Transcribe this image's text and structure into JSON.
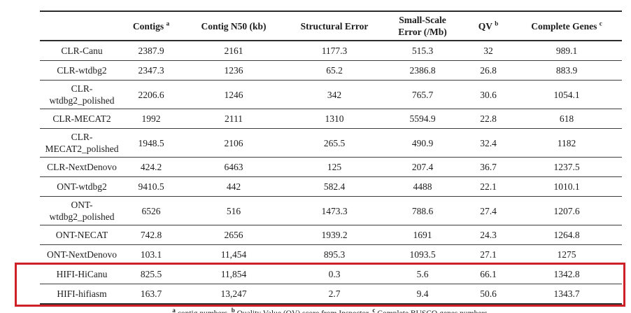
{
  "table": {
    "columns": [
      {
        "text": "",
        "sup": ""
      },
      {
        "text": "Contigs",
        "sup": "a"
      },
      {
        "text": "Contig N50 (kb)",
        "sup": ""
      },
      {
        "text": "Structural Error",
        "sup": ""
      },
      {
        "text": "Small-Scale\nError (/Mb)",
        "sup": ""
      },
      {
        "text": "QV",
        "sup": "b"
      },
      {
        "text": "Complete Genes",
        "sup": "c"
      }
    ],
    "rows": [
      {
        "label": "CLR-Canu",
        "values": [
          "2387.9",
          "2161",
          "1177.3",
          "515.3",
          "32",
          "989.1"
        ],
        "highlight": false
      },
      {
        "label": "CLR-wtdbg2",
        "values": [
          "2347.3",
          "1236",
          "65.2",
          "2386.8",
          "26.8",
          "883.9"
        ],
        "highlight": false
      },
      {
        "label": "CLR-\nwtdbg2_polished",
        "values": [
          "2206.6",
          "1246",
          "342",
          "765.7",
          "30.6",
          "1054.1"
        ],
        "highlight": false
      },
      {
        "label": "CLR-MECAT2",
        "values": [
          "1992",
          "2111",
          "1310",
          "5594.9",
          "22.8",
          "618"
        ],
        "highlight": false
      },
      {
        "label": "CLR-\nMECAT2_polished",
        "values": [
          "1948.5",
          "2106",
          "265.5",
          "490.9",
          "32.4",
          "1182"
        ],
        "highlight": false
      },
      {
        "label": "CLR-NextDenovo",
        "values": [
          "424.2",
          "6463",
          "125",
          "207.4",
          "36.7",
          "1237.5"
        ],
        "highlight": false
      },
      {
        "label": "ONT-wtdbg2",
        "values": [
          "9410.5",
          "442",
          "582.4",
          "4488",
          "22.1",
          "1010.1"
        ],
        "highlight": false
      },
      {
        "label": "ONT-\nwtdbg2_polished",
        "values": [
          "6526",
          "516",
          "1473.3",
          "788.6",
          "27.4",
          "1207.6"
        ],
        "highlight": false
      },
      {
        "label": "ONT-NECAT",
        "values": [
          "742.8",
          "2656",
          "1939.2",
          "1691",
          "24.3",
          "1264.8"
        ],
        "highlight": false
      },
      {
        "label": "ONT-NextDenovo",
        "values": [
          "103.1",
          "11,454",
          "895.3",
          "1093.5",
          "27.1",
          "1275"
        ],
        "highlight": false
      },
      {
        "label": "HIFI-HiCanu",
        "values": [
          "825.5",
          "11,854",
          "0.3",
          "5.6",
          "66.1",
          "1342.8"
        ],
        "highlight": true
      },
      {
        "label": "HIFI-hifiasm",
        "values": [
          "163.7",
          "13,247",
          "2.7",
          "9.4",
          "50.6",
          "1343.7"
        ],
        "highlight": true
      }
    ]
  },
  "footnote": {
    "segments": [
      {
        "sup": "a",
        "text": " contig numbers, "
      },
      {
        "sup": "b",
        "text": " Quality Value (QV) score from Inspector, "
      },
      {
        "sup": "c",
        "text": " Complete BUSCO genes numbers."
      }
    ]
  },
  "colors": {
    "highlight_border": "#cd2027",
    "rule": "#2d2d2d"
  }
}
